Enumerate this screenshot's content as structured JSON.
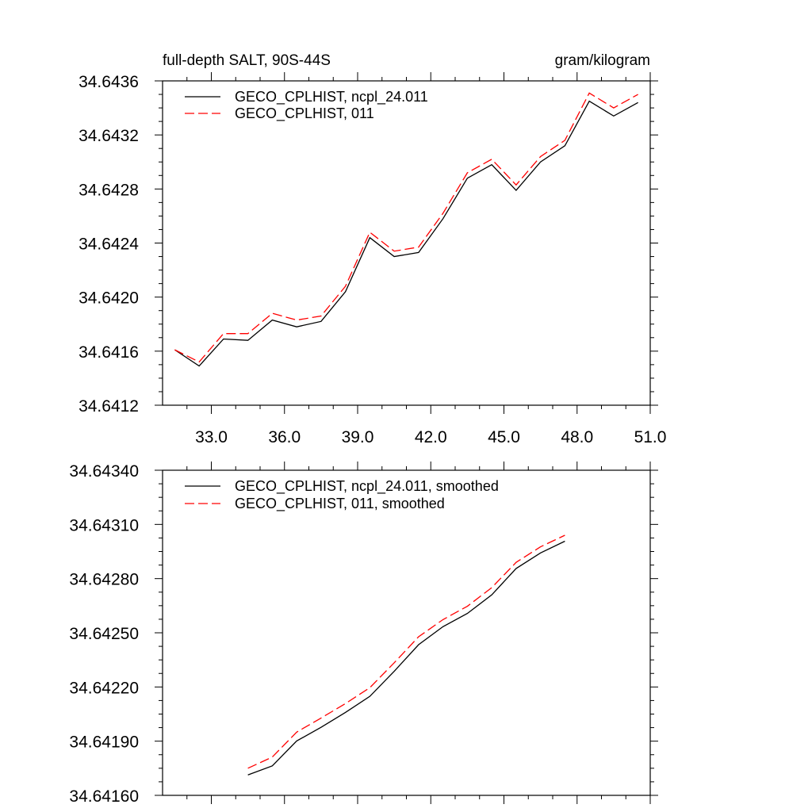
{
  "chart_data": [
    {
      "type": "line",
      "title_left": "full-depth SALT, 90S-44S",
      "title_right": "gram/kilogram",
      "xlim": [
        31,
        51
      ],
      "ylim": [
        34.6412,
        34.6436
      ],
      "x_ticks": [
        "33.0",
        "36.0",
        "39.0",
        "42.0",
        "45.0",
        "48.0",
        "51.0"
      ],
      "y_ticks": [
        "34.6436",
        "34.6432",
        "34.6428",
        "34.6424",
        "34.6420",
        "34.6416",
        "34.6412"
      ],
      "x": [
        31.5,
        32.5,
        33.5,
        34.5,
        35.5,
        36.5,
        37.5,
        38.5,
        39.5,
        40.5,
        41.5,
        42.5,
        43.5,
        44.5,
        45.5,
        46.5,
        47.5,
        48.5,
        49.5,
        50.5
      ],
      "series": [
        {
          "name": "GECO_CPLHIST, ncpl_24.011",
          "color": "#000000",
          "dash": "solid",
          "values": [
            34.64161,
            34.64149,
            34.64169,
            34.64168,
            34.64183,
            34.64178,
            34.64182,
            34.64204,
            34.64244,
            34.6423,
            34.64233,
            34.64258,
            34.64288,
            34.64298,
            34.64279,
            34.643,
            34.64312,
            34.64345,
            34.64334,
            34.64344
          ]
        },
        {
          "name": "GECO_CPLHIST, 011",
          "color": "#ff0000",
          "dash": "dashed",
          "values": [
            34.64161,
            34.64152,
            34.64173,
            34.64173,
            34.64188,
            34.64183,
            34.64186,
            34.64208,
            34.64248,
            34.64234,
            34.64237,
            34.64262,
            34.64292,
            34.64302,
            34.64283,
            34.64304,
            34.64316,
            34.64351,
            34.6434,
            34.6435
          ]
        }
      ]
    },
    {
      "type": "line",
      "xlim": [
        31,
        51
      ],
      "ylim": [
        34.6416,
        34.6434
      ],
      "x_ticks": [],
      "y_ticks": [
        "34.64340",
        "34.64310",
        "34.64280",
        "34.64250",
        "34.64220",
        "34.64190",
        "34.64160"
      ],
      "x": [
        34.5,
        35.5,
        36.5,
        37.5,
        38.5,
        39.5,
        40.5,
        41.5,
        42.5,
        43.5,
        44.5,
        45.5,
        46.5,
        47.5
      ],
      "series": [
        {
          "name": "GECO_CPLHIST, ncpl_24.011, smoothed",
          "color": "#000000",
          "dash": "solid",
          "values": [
            34.641713,
            34.641763,
            34.641901,
            34.641977,
            34.642059,
            34.642148,
            34.642287,
            34.642434,
            34.642534,
            34.642607,
            34.64271,
            34.642856,
            34.642942,
            34.643007
          ]
        },
        {
          "name": "GECO_CPLHIST, 011, smoothed",
          "color": "#ff0000",
          "dash": "dashed",
          "values": [
            34.64175,
            34.641812,
            34.64195,
            34.642028,
            34.642108,
            34.642196,
            34.642334,
            34.642478,
            34.642573,
            34.642647,
            34.64275,
            34.64289,
            34.642976,
            34.64304
          ]
        }
      ]
    }
  ]
}
